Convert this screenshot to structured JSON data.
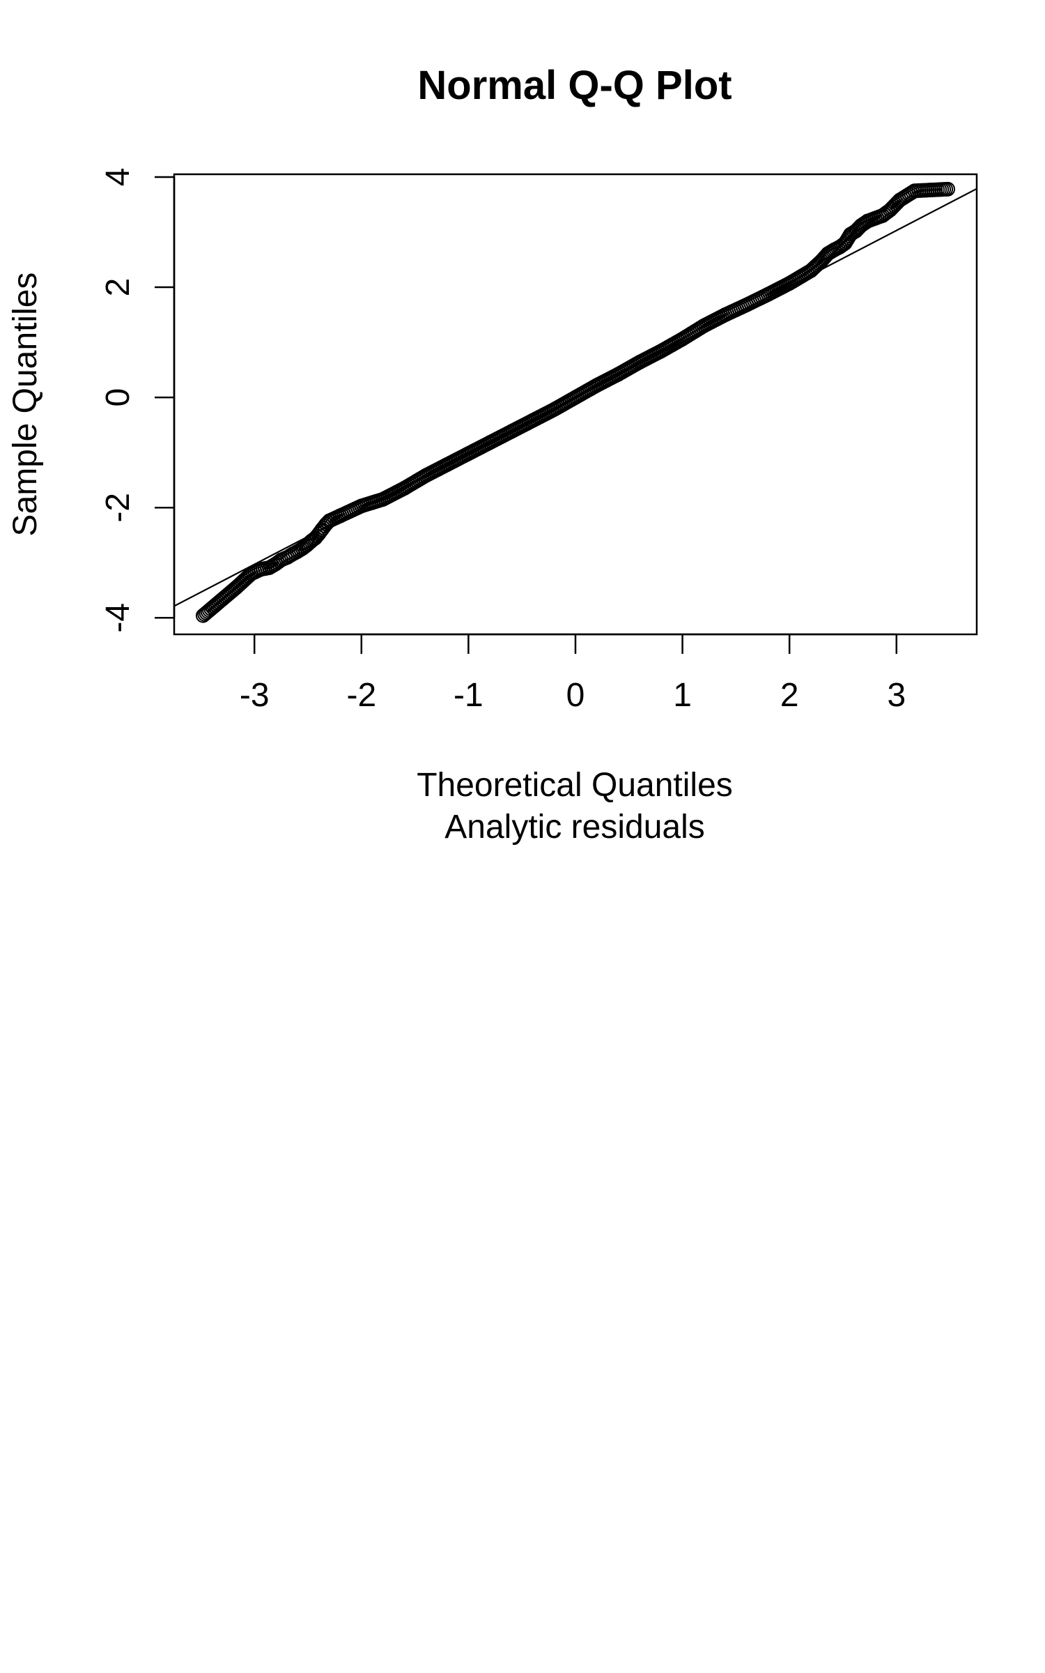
{
  "chart_data": {
    "type": "scatter",
    "title": "Normal Q-Q Plot",
    "xlabel": "Theoretical Quantiles",
    "subtitle": "Analytic residuals",
    "ylabel": "Sample Quantiles",
    "xlim": [
      -3.75,
      3.75
    ],
    "ylim": [
      -4.3,
      4.05
    ],
    "x_ticks": [
      -3,
      -2,
      -1,
      0,
      1,
      2,
      3
    ],
    "x_tick_labels": [
      "-3",
      "-2",
      "-1",
      "0",
      "1",
      "2",
      "3"
    ],
    "y_ticks": [
      -4,
      -2,
      0,
      2,
      4
    ],
    "y_tick_labels": [
      "-4",
      "-2",
      "0",
      "2",
      "4"
    ],
    "grid": false,
    "reference_line": {
      "slope": 1.01,
      "intercept": 0.0,
      "label": ""
    },
    "marker": "open-circle",
    "series": [
      {
        "points": [
          [
            -3.48,
            -3.96
          ],
          [
            -3.17,
            -3.45
          ],
          [
            -3.03,
            -3.2
          ],
          [
            -2.94,
            -3.12
          ],
          [
            -2.86,
            -3.09
          ],
          [
            -2.8,
            -3.02
          ],
          [
            -2.75,
            -2.95
          ],
          [
            -2.69,
            -2.9
          ],
          [
            -2.64,
            -2.84
          ],
          [
            -2.6,
            -2.8
          ],
          [
            -2.55,
            -2.74
          ],
          [
            -2.51,
            -2.68
          ],
          [
            -2.47,
            -2.61
          ],
          [
            -2.43,
            -2.55
          ],
          [
            -2.4,
            -2.48
          ],
          [
            -2.37,
            -2.4
          ],
          [
            -2.33,
            -2.3
          ],
          [
            -2.3,
            -2.24
          ],
          [
            -2.2,
            -2.15
          ],
          [
            -2.0,
            -1.97
          ],
          [
            -1.8,
            -1.85
          ],
          [
            -1.6,
            -1.65
          ],
          [
            -1.4,
            -1.42
          ],
          [
            -1.2,
            -1.22
          ],
          [
            -1.0,
            -1.02
          ],
          [
            -0.8,
            -0.82
          ],
          [
            -0.6,
            -0.62
          ],
          [
            -0.4,
            -0.42
          ],
          [
            -0.2,
            -0.22
          ],
          [
            0.0,
            0.0
          ],
          [
            0.2,
            0.22
          ],
          [
            0.4,
            0.42
          ],
          [
            0.6,
            0.64
          ],
          [
            0.8,
            0.84
          ],
          [
            1.0,
            1.06
          ],
          [
            1.2,
            1.3
          ],
          [
            1.4,
            1.5
          ],
          [
            1.6,
            1.68
          ],
          [
            1.8,
            1.87
          ],
          [
            2.0,
            2.07
          ],
          [
            2.2,
            2.3
          ],
          [
            2.3,
            2.48
          ],
          [
            2.36,
            2.61
          ],
          [
            2.42,
            2.68
          ],
          [
            2.47,
            2.73
          ],
          [
            2.52,
            2.8
          ],
          [
            2.57,
            2.96
          ],
          [
            2.62,
            3.02
          ],
          [
            2.67,
            3.12
          ],
          [
            2.73,
            3.2
          ],
          [
            2.8,
            3.25
          ],
          [
            2.87,
            3.3
          ],
          [
            2.94,
            3.4
          ],
          [
            3.03,
            3.58
          ],
          [
            3.17,
            3.75
          ],
          [
            3.48,
            3.78
          ]
        ]
      }
    ]
  }
}
